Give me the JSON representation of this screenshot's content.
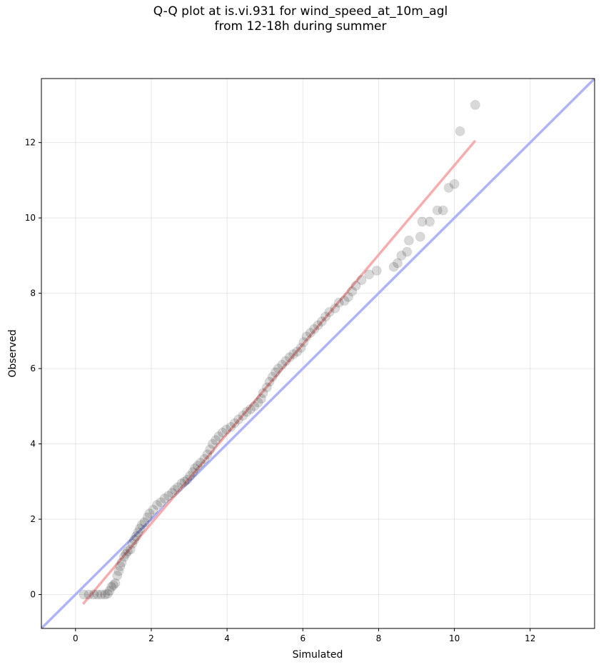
{
  "title": {
    "line1": "Q-Q plot at is.vi.931 for wind_speed_at_10m_agl",
    "line2": "from 12-18h during summer"
  },
  "chart_data": {
    "type": "scatter",
    "xlabel": "Simulated",
    "ylabel": "Observed",
    "xlim": [
      -0.9,
      13.7
    ],
    "ylim": [
      -0.9,
      13.7
    ],
    "xticks": [
      0,
      2,
      4,
      6,
      8,
      10,
      12
    ],
    "yticks": [
      0,
      2,
      4,
      6,
      8,
      10,
      12
    ],
    "grid": true,
    "colors": {
      "points": "#000000",
      "identity_line": "#aab0f5",
      "fit_line": "#f5a9a9",
      "frame": "#000000"
    },
    "identity_line": {
      "from": [
        -0.9,
        -0.9
      ],
      "to": [
        13.7,
        13.7
      ]
    },
    "fit_line": {
      "from": [
        0.2,
        -0.25
      ],
      "to": [
        10.55,
        12.05
      ]
    },
    "points": [
      [
        0.22,
        0.0
      ],
      [
        0.35,
        0.0
      ],
      [
        0.48,
        0.0
      ],
      [
        0.58,
        0.0
      ],
      [
        0.68,
        0.0
      ],
      [
        0.78,
        0.0
      ],
      [
        0.85,
        0.02
      ],
      [
        0.9,
        0.1
      ],
      [
        0.95,
        0.2
      ],
      [
        1.0,
        0.25
      ],
      [
        1.05,
        0.3
      ],
      [
        1.1,
        0.5
      ],
      [
        1.14,
        0.62
      ],
      [
        1.18,
        0.75
      ],
      [
        1.22,
        0.85
      ],
      [
        1.28,
        1.0
      ],
      [
        1.33,
        1.08
      ],
      [
        1.38,
        1.15
      ],
      [
        1.45,
        1.2
      ],
      [
        1.5,
        1.35
      ],
      [
        1.55,
        1.45
      ],
      [
        1.6,
        1.55
      ],
      [
        1.65,
        1.65
      ],
      [
        1.7,
        1.75
      ],
      [
        1.75,
        1.85
      ],
      [
        1.82,
        1.92
      ],
      [
        1.9,
        2.05
      ],
      [
        1.95,
        2.15
      ],
      [
        2.05,
        2.25
      ],
      [
        2.15,
        2.38
      ],
      [
        2.25,
        2.45
      ],
      [
        2.35,
        2.55
      ],
      [
        2.45,
        2.62
      ],
      [
        2.55,
        2.7
      ],
      [
        2.62,
        2.78
      ],
      [
        2.7,
        2.85
      ],
      [
        2.8,
        2.95
      ],
      [
        2.88,
        3.0
      ],
      [
        2.95,
        3.05
      ],
      [
        3.02,
        3.15
      ],
      [
        3.1,
        3.25
      ],
      [
        3.15,
        3.35
      ],
      [
        3.22,
        3.42
      ],
      [
        3.3,
        3.5
      ],
      [
        3.4,
        3.6
      ],
      [
        3.48,
        3.72
      ],
      [
        3.55,
        3.85
      ],
      [
        3.62,
        4.0
      ],
      [
        3.7,
        4.1
      ],
      [
        3.78,
        4.2
      ],
      [
        3.88,
        4.3
      ],
      [
        3.98,
        4.38
      ],
      [
        4.1,
        4.45
      ],
      [
        4.2,
        4.55
      ],
      [
        4.3,
        4.65
      ],
      [
        4.42,
        4.75
      ],
      [
        4.52,
        4.85
      ],
      [
        4.62,
        4.92
      ],
      [
        4.72,
        5.0
      ],
      [
        4.82,
        5.1
      ],
      [
        4.9,
        5.2
      ],
      [
        4.95,
        5.35
      ],
      [
        5.05,
        5.5
      ],
      [
        5.12,
        5.65
      ],
      [
        5.2,
        5.78
      ],
      [
        5.28,
        5.9
      ],
      [
        5.35,
        6.0
      ],
      [
        5.45,
        6.1
      ],
      [
        5.55,
        6.2
      ],
      [
        5.65,
        6.3
      ],
      [
        5.75,
        6.38
      ],
      [
        5.85,
        6.45
      ],
      [
        5.95,
        6.55
      ],
      [
        6.02,
        6.7
      ],
      [
        6.1,
        6.85
      ],
      [
        6.2,
        6.95
      ],
      [
        6.3,
        7.05
      ],
      [
        6.4,
        7.15
      ],
      [
        6.5,
        7.25
      ],
      [
        6.6,
        7.38
      ],
      [
        6.7,
        7.5
      ],
      [
        6.85,
        7.6
      ],
      [
        6.95,
        7.75
      ],
      [
        7.1,
        7.8
      ],
      [
        7.2,
        7.9
      ],
      [
        7.3,
        8.05
      ],
      [
        7.4,
        8.2
      ],
      [
        7.55,
        8.35
      ],
      [
        7.75,
        8.5
      ],
      [
        7.95,
        8.6
      ],
      [
        8.4,
        8.7
      ],
      [
        8.5,
        8.8
      ],
      [
        8.6,
        9.0
      ],
      [
        8.75,
        9.1
      ],
      [
        8.8,
        9.4
      ],
      [
        9.1,
        9.5
      ],
      [
        9.15,
        9.9
      ],
      [
        9.35,
        9.9
      ],
      [
        9.55,
        10.2
      ],
      [
        9.7,
        10.2
      ],
      [
        9.85,
        10.8
      ],
      [
        10.0,
        10.9
      ],
      [
        10.15,
        12.3
      ],
      [
        10.55,
        13.0
      ]
    ]
  }
}
